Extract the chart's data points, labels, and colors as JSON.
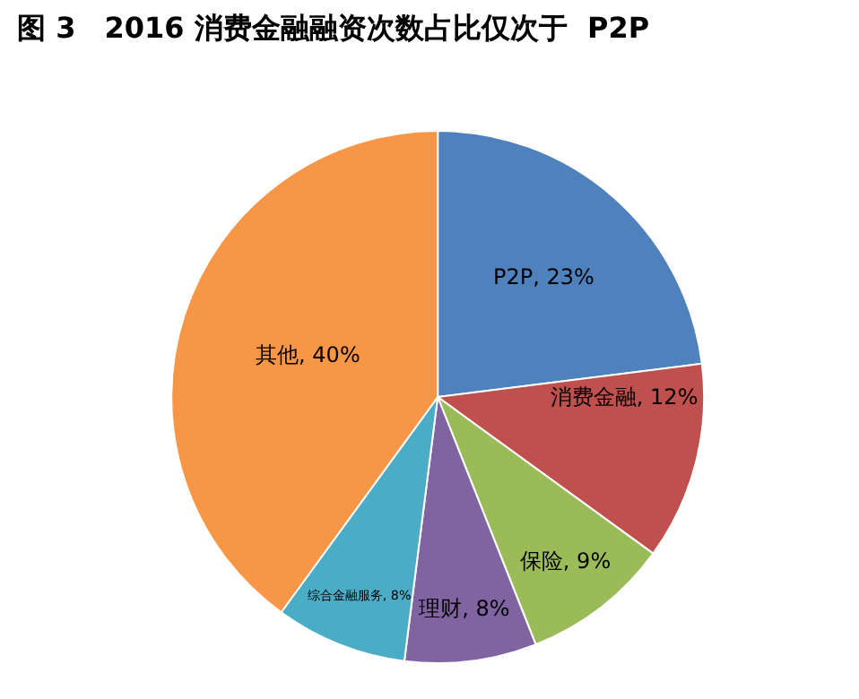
{
  "chart_data": {
    "type": "pie",
    "title": "图 3　2016 消费金融融资次数占比仅次于  P2P",
    "categories": [
      "P2P",
      "消费金融",
      "保险",
      "理财",
      "综合金融服务",
      "其他"
    ],
    "values": [
      23,
      12,
      9,
      8,
      8,
      40
    ],
    "value_labels": [
      "23%",
      "12%",
      "9%",
      "8%",
      "8%",
      "40%"
    ],
    "colors": [
      "#4f81bd",
      "#c0504d",
      "#9bbb59",
      "#8064a2",
      "#4bacc6",
      "#f79646"
    ],
    "legend": false
  }
}
